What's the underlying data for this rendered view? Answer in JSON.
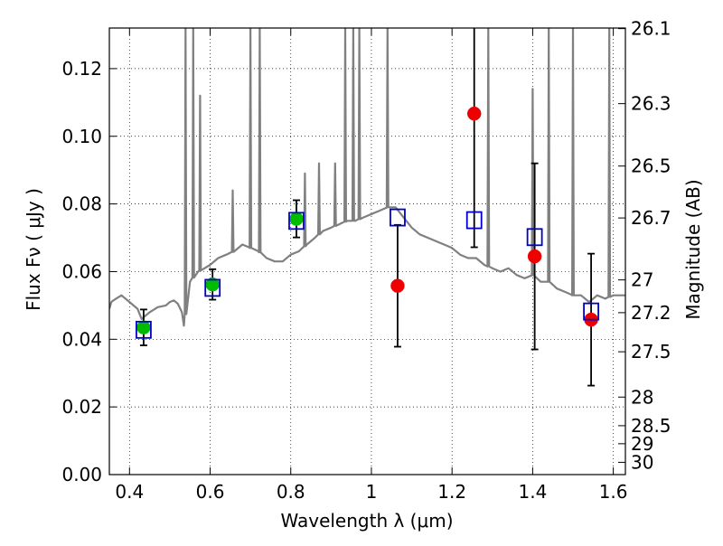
{
  "chart_data": {
    "type": "scatter",
    "xlabel": "Wavelength  λ (μm)",
    "ylabel": "Flux  Fν  ( μJy )",
    "y2label": "Magnitude (AB)",
    "xlim": [
      0.35,
      1.63
    ],
    "ylim": [
      0.0,
      0.132
    ],
    "grid": true,
    "grid_style": "dotted",
    "x_ticks": [
      0.4,
      0.6,
      0.8,
      1.0,
      1.2,
      1.4,
      1.6
    ],
    "x_tick_labels": [
      "0.4",
      "0.6",
      "0.8",
      "1",
      "1.2",
      "1.4",
      "1.6"
    ],
    "y_ticks": [
      0.0,
      0.02,
      0.04,
      0.06,
      0.08,
      0.1,
      0.12
    ],
    "y_tick_labels": [
      "0.00",
      "0.02",
      "0.04",
      "0.06",
      "0.08",
      "0.10",
      "0.12"
    ],
    "mag_tick_labels": [
      "26.1",
      "26.3",
      "26.5",
      "26.7",
      "27",
      "27.2",
      "27.5",
      "28",
      "28.5",
      "29",
      "30"
    ],
    "colors": {
      "model": "#808080",
      "observed_green": "#00bb00",
      "observed_red": "#ee0000",
      "model_bands": "#0000cc",
      "errorbar": "#000000"
    },
    "model_spectrum": {
      "x": [
        0.35,
        0.355,
        0.36,
        0.38,
        0.4,
        0.42,
        0.43,
        0.44,
        0.45,
        0.47,
        0.49,
        0.5,
        0.51,
        0.52,
        0.53,
        0.535,
        0.55,
        0.57,
        0.6,
        0.62,
        0.64,
        0.66,
        0.68,
        0.7,
        0.72,
        0.74,
        0.76,
        0.78,
        0.8,
        0.82,
        0.84,
        0.86,
        0.88,
        0.9,
        0.92,
        0.94,
        0.96,
        0.98,
        1.0,
        1.02,
        1.04,
        1.06,
        1.08,
        1.1,
        1.12,
        1.14,
        1.16,
        1.18,
        1.2,
        1.22,
        1.24,
        1.26,
        1.28,
        1.3,
        1.32,
        1.34,
        1.36,
        1.38,
        1.4,
        1.42,
        1.44,
        1.46,
        1.48,
        1.5,
        1.52,
        1.54,
        1.56,
        1.58,
        1.6,
        1.63
      ],
      "y": [
        0.049,
        0.051,
        0.0515,
        0.053,
        0.051,
        0.049,
        0.046,
        0.047,
        0.048,
        0.0495,
        0.05,
        0.051,
        0.0515,
        0.0505,
        0.048,
        0.044,
        0.057,
        0.06,
        0.062,
        0.064,
        0.065,
        0.066,
        0.068,
        0.067,
        0.066,
        0.064,
        0.063,
        0.063,
        0.065,
        0.066,
        0.068,
        0.07,
        0.072,
        0.073,
        0.074,
        0.075,
        0.075,
        0.076,
        0.077,
        0.078,
        0.079,
        0.079,
        0.076,
        0.073,
        0.071,
        0.07,
        0.069,
        0.068,
        0.067,
        0.065,
        0.064,
        0.064,
        0.062,
        0.061,
        0.06,
        0.061,
        0.059,
        0.058,
        0.059,
        0.057,
        0.057,
        0.055,
        0.054,
        0.053,
        0.053,
        0.051,
        0.053,
        0.052,
        0.053,
        0.053
      ],
      "emission_lines": [
        {
          "x": 0.539,
          "peak": 0.132
        },
        {
          "x": 0.558,
          "peak": 0.132
        },
        {
          "x": 0.575,
          "peak": 0.112
        },
        {
          "x": 0.656,
          "peak": 0.084
        },
        {
          "x": 0.7,
          "peak": 0.132
        },
        {
          "x": 0.723,
          "peak": 0.132
        },
        {
          "x": 0.835,
          "peak": 0.089
        },
        {
          "x": 0.87,
          "peak": 0.092
        },
        {
          "x": 0.91,
          "peak": 0.092
        },
        {
          "x": 0.935,
          "peak": 0.132
        },
        {
          "x": 0.955,
          "peak": 0.132
        },
        {
          "x": 0.97,
          "peak": 0.132
        },
        {
          "x": 1.04,
          "peak": 0.132
        },
        {
          "x": 1.29,
          "peak": 0.132
        },
        {
          "x": 1.4,
          "peak": 0.114
        },
        {
          "x": 1.44,
          "peak": 0.132
        },
        {
          "x": 1.5,
          "peak": 0.132
        },
        {
          "x": 1.59,
          "peak": 0.132
        }
      ]
    },
    "observed_points": [
      {
        "x": 0.435,
        "y": 0.0435,
        "yerr": 0.0053,
        "color": "green"
      },
      {
        "x": 0.606,
        "y": 0.0562,
        "yerr": 0.0045,
        "color": "green"
      },
      {
        "x": 0.814,
        "y": 0.0756,
        "yerr": 0.0055,
        "color": "green"
      },
      {
        "x": 1.065,
        "y": 0.0558,
        "yerr": 0.018,
        "color": "red"
      },
      {
        "x": 1.255,
        "y": 0.1067,
        "yerr": 0.0395,
        "color": "red"
      },
      {
        "x": 1.405,
        "y": 0.0645,
        "yerr": 0.0275,
        "color": "red"
      },
      {
        "x": 1.545,
        "y": 0.0458,
        "yerr": 0.0195,
        "color": "red"
      }
    ],
    "model_band_points": [
      {
        "x": 0.435,
        "y": 0.0428
      },
      {
        "x": 0.606,
        "y": 0.0552
      },
      {
        "x": 0.814,
        "y": 0.075
      },
      {
        "x": 1.065,
        "y": 0.076
      },
      {
        "x": 1.255,
        "y": 0.0752
      },
      {
        "x": 1.405,
        "y": 0.0702
      },
      {
        "x": 1.545,
        "y": 0.0482
      }
    ]
  }
}
